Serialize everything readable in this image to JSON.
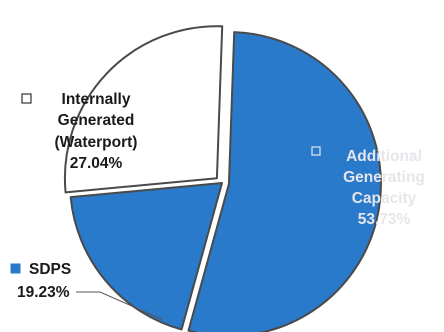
{
  "chart_data": {
    "type": "pie",
    "slices": [
      {
        "key": "additional",
        "label_lines": [
          "Additional",
          "Generating",
          "Capacity"
        ],
        "value": 53.73,
        "value_label": "53.73%",
        "color": "#2a7acc",
        "exploded": true
      },
      {
        "key": "sdps",
        "label_lines": [
          "SDPS"
        ],
        "value": 19.23,
        "value_label": "19.23%",
        "color": "#2a7acc",
        "exploded": false
      },
      {
        "key": "internal",
        "label_lines": [
          "Internally",
          "Generated",
          "(Waterport)"
        ],
        "value": 27.04,
        "value_label": "27.04%",
        "color": "#ffffff",
        "exploded": true
      }
    ],
    "stroke_color": "#4a4a4a",
    "legend_markers": true,
    "leader_line_for": "sdps"
  }
}
